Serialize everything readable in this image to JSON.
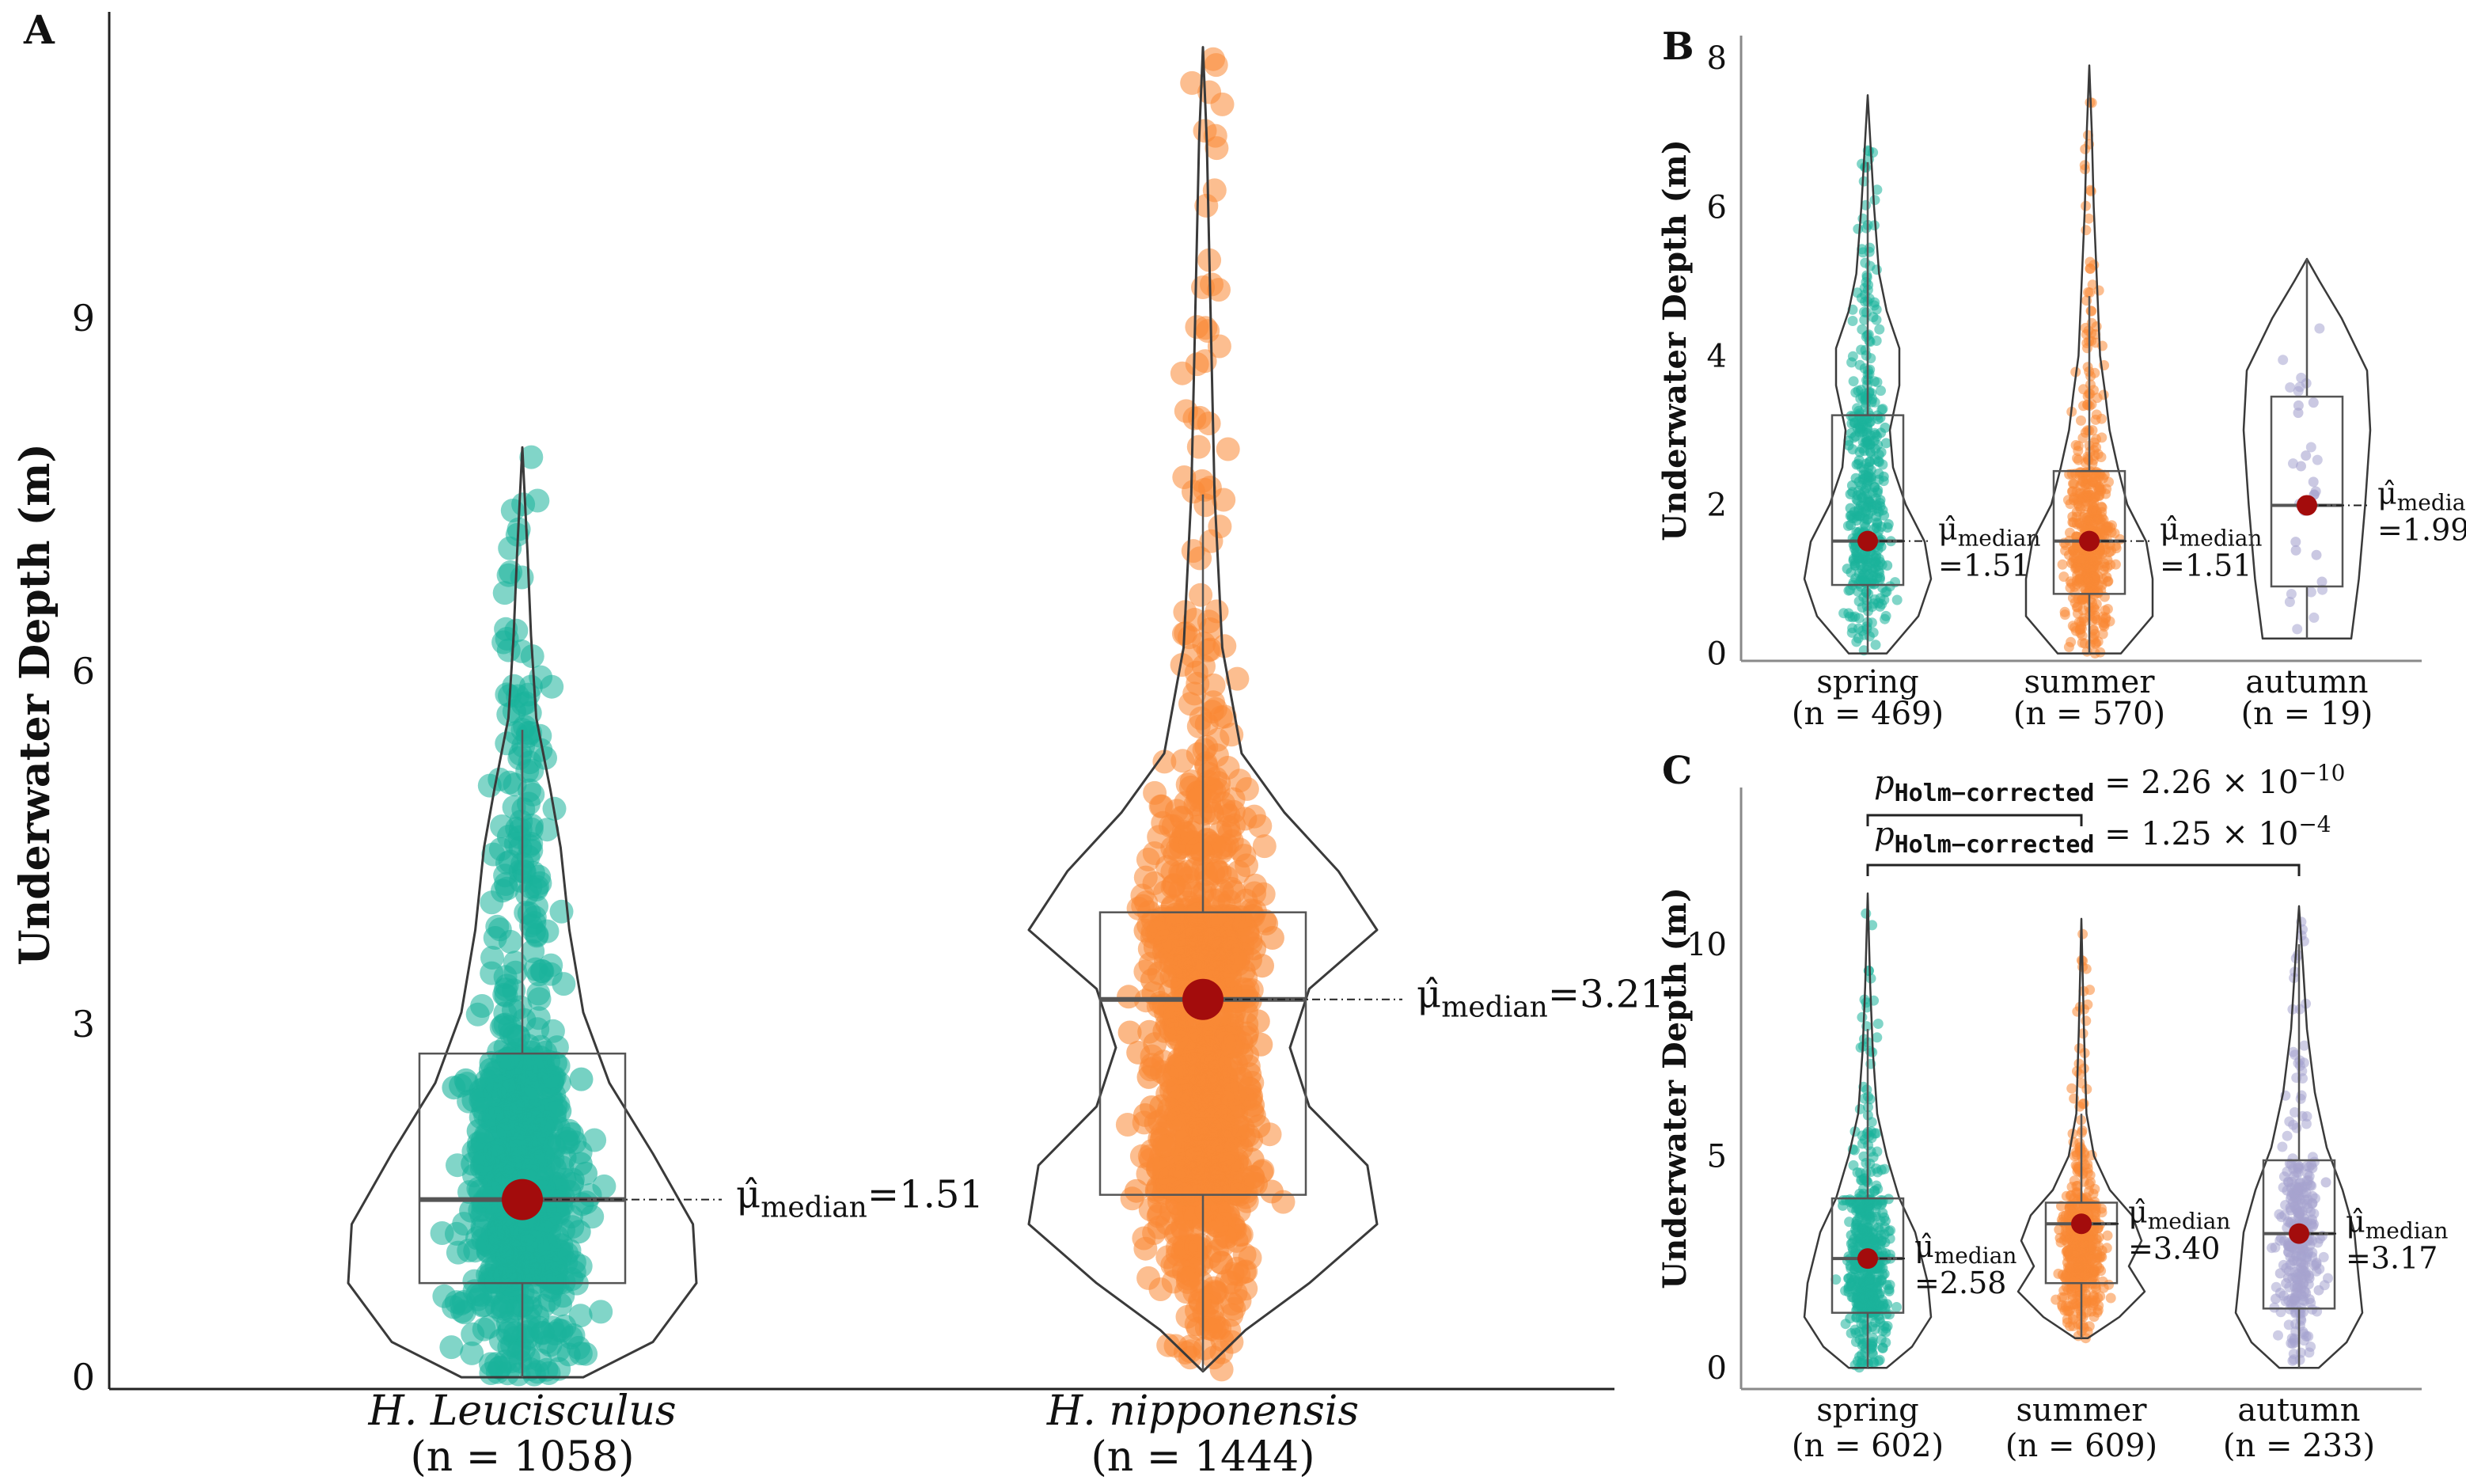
{
  "colors": {
    "spring": "#1ab39b",
    "summer": "#f98935",
    "autumn": "#a6a4cf",
    "median_dot": "#a30c0c",
    "outline": "#3a3a3a",
    "axis": "#222222"
  },
  "chart_data": [
    {
      "panel": "A",
      "type": "violin",
      "ylabel": "Underwater Depth (m)",
      "ylim": [
        -0.1,
        11.6
      ],
      "yticks": [
        0,
        3,
        6,
        9
      ],
      "median_label": "μ̂",
      "median_subscript": "median",
      "groups": [
        {
          "name": "H. Leucisculus",
          "n_label": "(n = 1058)",
          "n": 1058,
          "color_key": "spring",
          "min": 0,
          "max": 7.9,
          "q1": 0.8,
          "median": 1.51,
          "q3": 2.75,
          "whisker_low": 0,
          "whisker_high": 5.5,
          "median_text": "=1.51",
          "density": [
            [
              0,
              0.35
            ],
            [
              0.3,
              0.75
            ],
            [
              0.8,
              1.0
            ],
            [
              1.3,
              0.98
            ],
            [
              1.9,
              0.75
            ],
            [
              2.5,
              0.5
            ],
            [
              3.1,
              0.35
            ],
            [
              3.8,
              0.27
            ],
            [
              4.5,
              0.22
            ],
            [
              5.0,
              0.16
            ],
            [
              5.6,
              0.08
            ],
            [
              6.3,
              0.05
            ],
            [
              7.0,
              0.03
            ],
            [
              7.9,
              0.0
            ]
          ]
        },
        {
          "name": "H. nipponensis",
          "n_label": "(n = 1444)",
          "n": 1444,
          "color_key": "summer",
          "min": 0.05,
          "max": 11.3,
          "q1": 1.55,
          "median": 3.21,
          "q3": 3.95,
          "whisker_low": 0.05,
          "whisker_high": 7.5,
          "median_text": "=3.21",
          "density": [
            [
              0.05,
              0
            ],
            [
              0.4,
              0.22
            ],
            [
              0.8,
              0.55
            ],
            [
              1.3,
              0.9
            ],
            [
              1.8,
              0.85
            ],
            [
              2.3,
              0.55
            ],
            [
              2.8,
              0.45
            ],
            [
              3.3,
              0.55
            ],
            [
              3.8,
              0.9
            ],
            [
              4.3,
              0.7
            ],
            [
              4.8,
              0.42
            ],
            [
              5.3,
              0.2
            ],
            [
              6.2,
              0.1
            ],
            [
              7.5,
              0.06
            ],
            [
              9.0,
              0.04
            ],
            [
              10.5,
              0.02
            ],
            [
              11.3,
              0.0
            ]
          ]
        }
      ]
    },
    {
      "panel": "B",
      "type": "violin",
      "ylabel": "Underwater Depth (m)",
      "ylim": [
        -0.1,
        8.3
      ],
      "yticks": [
        0,
        2,
        4,
        6,
        8
      ],
      "median_label": "μ̂",
      "median_subscript": "median",
      "groups": [
        {
          "name": "spring",
          "n_label": "(n = 469)",
          "n": 469,
          "color_key": "spring",
          "min": 0,
          "max": 7.5,
          "q1": 0.92,
          "median": 1.51,
          "q3": 3.2,
          "whisker_low": 0,
          "whisker_high": 6.6,
          "median_text": "=1.51",
          "density": [
            [
              0,
              0.3
            ],
            [
              0.5,
              0.8
            ],
            [
              1.0,
              1.0
            ],
            [
              1.5,
              0.9
            ],
            [
              2.0,
              0.6
            ],
            [
              2.5,
              0.4
            ],
            [
              3.0,
              0.35
            ],
            [
              3.6,
              0.5
            ],
            [
              4.1,
              0.5
            ],
            [
              4.6,
              0.3
            ],
            [
              5.1,
              0.18
            ],
            [
              6.0,
              0.1
            ],
            [
              7.5,
              0.0
            ]
          ]
        },
        {
          "name": "summer",
          "n_label": "(n = 570)",
          "n": 570,
          "color_key": "summer",
          "min": 0,
          "max": 7.9,
          "q1": 0.8,
          "median": 1.51,
          "q3": 2.45,
          "whisker_low": 0,
          "whisker_high": 4.8,
          "median_text": "=1.51",
          "density": [
            [
              0,
              0.5
            ],
            [
              0.5,
              1.0
            ],
            [
              1.0,
              1.0
            ],
            [
              1.5,
              0.9
            ],
            [
              2.0,
              0.6
            ],
            [
              2.5,
              0.45
            ],
            [
              3.0,
              0.32
            ],
            [
              3.5,
              0.25
            ],
            [
              4.0,
              0.17
            ],
            [
              5.0,
              0.12
            ],
            [
              6.0,
              0.07
            ],
            [
              7.0,
              0.04
            ],
            [
              7.9,
              0.0
            ]
          ]
        },
        {
          "name": "autumn",
          "n_label": "(n = 19)",
          "n": 19,
          "color_key": "autumn",
          "min": 0.2,
          "max": 5.3,
          "q1": 0.9,
          "median": 1.99,
          "q3": 3.45,
          "whisker_low": 0.2,
          "whisker_high": 5.3,
          "median_text": "=1.99",
          "density": [
            [
              0.2,
              0.7
            ],
            [
              1.0,
              0.82
            ],
            [
              2.0,
              0.92
            ],
            [
              3.0,
              1.0
            ],
            [
              3.8,
              0.95
            ],
            [
              4.5,
              0.55
            ],
            [
              5.0,
              0.2
            ],
            [
              5.3,
              0.0
            ]
          ]
        }
      ]
    },
    {
      "panel": "C",
      "type": "violin",
      "ylabel": "Underwater Depth (m)",
      "ylim": [
        -0.5,
        13.7
      ],
      "yticks": [
        0,
        5,
        10
      ],
      "median_label": "μ̂",
      "median_subscript": "median",
      "groups": [
        {
          "name": "spring",
          "n_label": "(n = 602)",
          "n": 602,
          "color_key": "spring",
          "min": 0,
          "max": 11.2,
          "q1": 1.3,
          "median": 2.58,
          "q3": 4.0,
          "whisker_low": 0,
          "whisker_high": 8.0,
          "median_text": "=2.58",
          "density": [
            [
              0,
              0.3
            ],
            [
              0.5,
              0.7
            ],
            [
              1.2,
              1.0
            ],
            [
              2.0,
              0.95
            ],
            [
              2.6,
              0.85
            ],
            [
              3.2,
              0.75
            ],
            [
              4.0,
              0.5
            ],
            [
              5.0,
              0.3
            ],
            [
              6.0,
              0.15
            ],
            [
              7.5,
              0.08
            ],
            [
              9.0,
              0.04
            ],
            [
              11.2,
              0.0
            ]
          ]
        },
        {
          "name": "summer",
          "n_label": "(n = 609)",
          "n": 609,
          "color_key": "summer",
          "min": 0.7,
          "max": 10.6,
          "q1": 2.0,
          "median": 3.4,
          "q3": 3.9,
          "whisker_low": 0.7,
          "whisker_high": 6.0,
          "median_text": "=3.40",
          "density": [
            [
              0.7,
              0.1
            ],
            [
              1.2,
              0.6
            ],
            [
              1.8,
              1.0
            ],
            [
              2.4,
              0.75
            ],
            [
              3.0,
              0.95
            ],
            [
              3.6,
              0.8
            ],
            [
              4.2,
              0.45
            ],
            [
              5.0,
              0.2
            ],
            [
              6.0,
              0.08
            ],
            [
              8.0,
              0.04
            ],
            [
              10.6,
              0.0
            ]
          ]
        },
        {
          "name": "autumn",
          "n_label": "(n = 233)",
          "n": 233,
          "color_key": "autumn",
          "min": 0,
          "max": 10.9,
          "q1": 1.4,
          "median": 3.17,
          "q3": 4.9,
          "whisker_low": 0,
          "whisker_high": 10.0,
          "median_text": "=3.17",
          "density": [
            [
              0,
              0.25
            ],
            [
              0.6,
              0.6
            ],
            [
              1.3,
              0.8
            ],
            [
              2.2,
              0.75
            ],
            [
              3.2,
              0.7
            ],
            [
              4.2,
              0.55
            ],
            [
              5.2,
              0.35
            ],
            [
              6.5,
              0.2
            ],
            [
              8.0,
              0.1
            ],
            [
              9.5,
              0.05
            ],
            [
              10.9,
              0.0
            ]
          ]
        }
      ],
      "comparisons": [
        {
          "from": "spring",
          "to": "summer",
          "p_label": "p",
          "p_subscript": "Holm−corrected",
          "p_text": " = 2.26 × 10",
          "p_exp": "−10"
        },
        {
          "from": "spring",
          "to": "autumn",
          "p_label": "p",
          "p_subscript": "Holm−corrected",
          "p_text": " = 1.25 × 10",
          "p_exp": "−4"
        }
      ]
    }
  ]
}
